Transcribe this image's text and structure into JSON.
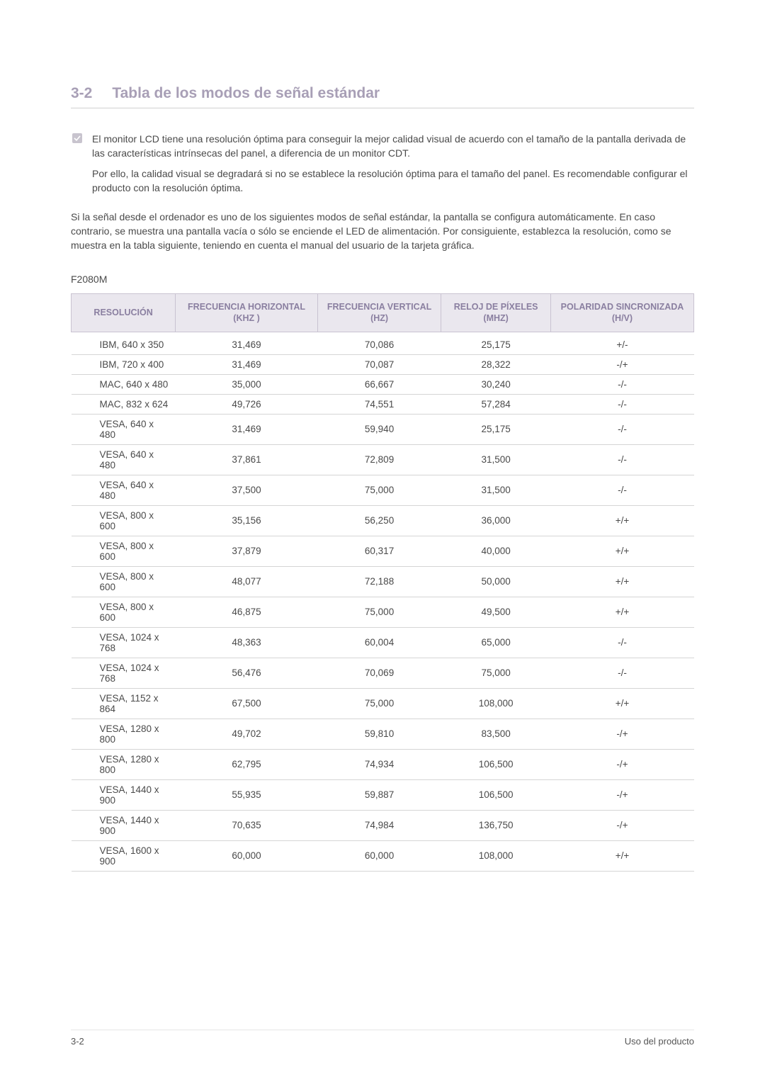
{
  "colors": {
    "heading": "#a89fb6",
    "th_bg": "#eae7ee",
    "th_text": "#8a7fa0",
    "border": "#c9c3d1",
    "row_border": "#d5d5d5",
    "body_text": "#4a4a4a"
  },
  "section": {
    "number": "3-2",
    "title": "Tabla de los modos de señal estándar"
  },
  "note": {
    "p1": "El monitor LCD tiene una resolución óptima para conseguir la mejor calidad visual de acuerdo con el tamaño de la pantalla derivada de las características intrínsecas del panel, a diferencia de un monitor CDT.",
    "p2": "Por ello, la calidad visual se degradará si no se establece la resolución óptima para el tamaño del panel. Es recomendable configurar el producto con la resolución óptima."
  },
  "body_paragraph": "Si la señal desde el ordenador es uno de los siguientes modos de señal estándar, la pantalla se configura automáticamente. En caso contrario, se muestra una pantalla vacía o sólo se enciende el LED de alimentación. Por consiguiente, establezca la resolución, como se muestra en la tabla siguiente, teniendo en cuenta el manual del usuario de la tarjeta gráfica.",
  "model": "F2080M",
  "table": {
    "columns": [
      "RESOLUCIÓN",
      "FRECUENCIA HORIZONTAL (KHZ )",
      "FRECUENCIA VERTICAL (HZ)",
      "RELOJ DE PÍXELES (MHZ)",
      "POLARIDAD SINCRONIZADA (H/V)"
    ],
    "rows": [
      [
        "IBM, 640 x 350",
        "31,469",
        "70,086",
        "25,175",
        "+/-"
      ],
      [
        "IBM, 720 x 400",
        "31,469",
        "70,087",
        "28,322",
        "-/+"
      ],
      [
        "MAC, 640 x 480",
        "35,000",
        "66,667",
        "30,240",
        "-/-"
      ],
      [
        "MAC, 832 x 624",
        "49,726",
        "74,551",
        "57,284",
        "-/-"
      ],
      [
        "VESA, 640 x 480",
        "31,469",
        "59,940",
        "25,175",
        "-/-"
      ],
      [
        "VESA, 640 x 480",
        "37,861",
        "72,809",
        "31,500",
        "-/-"
      ],
      [
        "VESA, 640 x 480",
        "37,500",
        "75,000",
        "31,500",
        "-/-"
      ],
      [
        "VESA, 800 x 600",
        "35,156",
        "56,250",
        "36,000",
        "+/+"
      ],
      [
        "VESA, 800 x 600",
        "37,879",
        "60,317",
        "40,000",
        "+/+"
      ],
      [
        "VESA, 800 x 600",
        "48,077",
        "72,188",
        "50,000",
        "+/+"
      ],
      [
        "VESA, 800 x 600",
        "46,875",
        "75,000",
        "49,500",
        "+/+"
      ],
      [
        "VESA, 1024 x 768",
        "48,363",
        "60,004",
        "65,000",
        "-/-"
      ],
      [
        "VESA, 1024 x 768",
        "56,476",
        "70,069",
        "75,000",
        "-/-"
      ],
      [
        "VESA, 1152 x 864",
        "67,500",
        "75,000",
        "108,000",
        "+/+"
      ],
      [
        "VESA, 1280 x 800",
        "49,702",
        "59,810",
        "83,500",
        "-/+"
      ],
      [
        "VESA, 1280 x 800",
        "62,795",
        "74,934",
        "106,500",
        "-/+"
      ],
      [
        "VESA, 1440 x 900",
        "55,935",
        "59,887",
        "106,500",
        "-/+"
      ],
      [
        "VESA, 1440 x 900",
        "70,635",
        "74,984",
        "136,750",
        "-/+"
      ],
      [
        "VESA, 1600 x 900",
        "60,000",
        "60,000",
        "108,000",
        "+/+"
      ]
    ]
  },
  "footer": {
    "left": "3-2",
    "right": "Uso del producto"
  }
}
